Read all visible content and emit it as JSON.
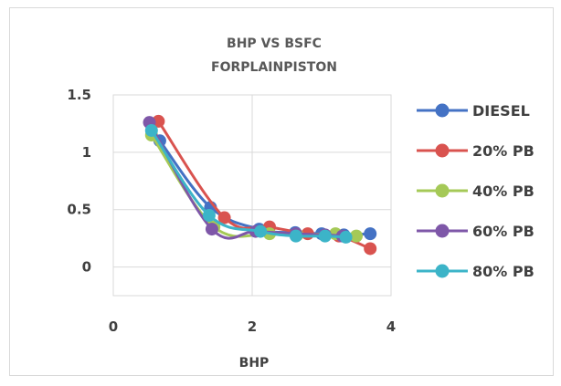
{
  "chart_data": {
    "type": "line",
    "title_lines": [
      "BHP VS BSFC",
      "FORPLAINPISTON"
    ],
    "xlabel": "BHP",
    "ylabel": "",
    "xlim": [
      0,
      4
    ],
    "ylim": [
      -0.25,
      1.5
    ],
    "x_ticks": [
      "0",
      "2",
      "4"
    ],
    "x_tick_values": [
      0,
      2,
      4
    ],
    "y_ticks": [
      "1.5",
      "1",
      "0.5",
      "0"
    ],
    "y_tick_values": [
      1.5,
      1,
      0.5,
      0
    ],
    "grid": true,
    "legend_position": "right",
    "series": [
      {
        "name": "DIESEL",
        "color": "#4472C4",
        "points": [
          [
            0.67,
            1.1
          ],
          [
            1.4,
            0.52
          ],
          [
            2.1,
            0.33
          ],
          [
            2.62,
            0.3
          ],
          [
            3.0,
            0.29
          ],
          [
            3.32,
            0.28
          ],
          [
            3.7,
            0.29
          ]
        ]
      },
      {
        "name": "20% PB",
        "color": "#ED7D31",
        "line_color": "#D9534F",
        "points": [
          [
            0.65,
            1.27
          ],
          [
            1.6,
            0.43
          ],
          [
            2.25,
            0.35
          ],
          [
            2.8,
            0.29
          ],
          [
            3.25,
            0.27
          ],
          [
            3.7,
            0.16
          ]
        ]
      },
      {
        "name": "40% PB",
        "color": "#A5C957",
        "points": [
          [
            0.55,
            1.15
          ],
          [
            1.45,
            0.35
          ],
          [
            2.25,
            0.29
          ],
          [
            2.65,
            0.28
          ],
          [
            3.2,
            0.29
          ],
          [
            3.5,
            0.27
          ]
        ]
      },
      {
        "name": "60% PB",
        "color": "#7E57A8",
        "points": [
          [
            0.52,
            1.26
          ],
          [
            1.42,
            0.33
          ],
          [
            2.05,
            0.31
          ],
          [
            2.63,
            0.29
          ],
          [
            3.05,
            0.28
          ],
          [
            3.3,
            0.27
          ]
        ]
      },
      {
        "name": "80% PB",
        "color": "#3CB4C8",
        "points": [
          [
            0.55,
            1.19
          ],
          [
            1.38,
            0.45
          ],
          [
            2.12,
            0.31
          ],
          [
            2.63,
            0.27
          ],
          [
            3.05,
            0.27
          ],
          [
            3.35,
            0.26
          ]
        ]
      }
    ]
  }
}
